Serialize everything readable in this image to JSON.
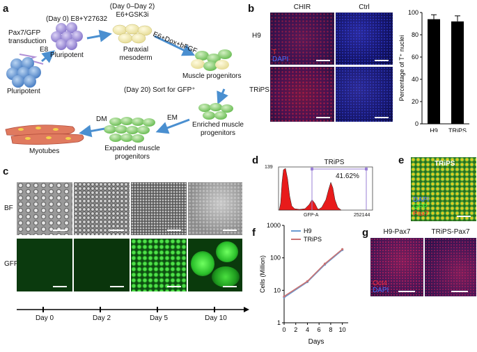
{
  "panel_labels": {
    "a": "a",
    "b": "b",
    "c": "c",
    "d": "d",
    "e": "e",
    "f": "f",
    "g": "g"
  },
  "panel_a": {
    "transduction": "Pax7/GFP\ntransduction",
    "e8": "E8",
    "day0": "(Day 0) E8+Y27632",
    "day0_2": "(Day 0–Day 2)\nE6+GSK3i",
    "dox": "E6+Dox+bFGF",
    "pluripotent_left": "Pluripotent",
    "pluripotent_mid": "Pluripotent",
    "paraxial": "Paraxial\nmesoderm",
    "muscle_prog": "Muscle progenitors",
    "sort": "(Day 20) Sort for GFP⁺",
    "enriched": "Enriched muscle\nprogenitors",
    "em": "EM",
    "dm": "DM",
    "expanded": "Expanded muscle\nprogenitors",
    "myotubes": "Myotubes"
  },
  "panel_b": {
    "col_chir": "CHIR",
    "col_ctrl": "Ctrl",
    "row_h9": "H9",
    "row_trips": "TRiPS",
    "stain_t": "T",
    "stain_dapi": "DAPI"
  },
  "chart_data": [
    {
      "type": "bar",
      "categories": [
        "H9",
        "TRiPS"
      ],
      "values": [
        94,
        92
      ],
      "errors": [
        4,
        5
      ],
      "ylabel": "Percentage of T⁺ nuclei",
      "ylim": [
        0,
        100
      ],
      "yticks": [
        "0",
        "20",
        "40",
        "60",
        "80",
        "100"
      ],
      "colors": {
        "bar": "#000000"
      }
    },
    {
      "type": "line",
      "x": [
        0,
        4,
        7,
        10
      ],
      "series": [
        {
          "name": "H9",
          "values": [
            6,
            18,
            62,
            175
          ],
          "color": "#6b9bd1"
        },
        {
          "name": "TRiPS",
          "values": [
            6.5,
            19,
            66,
            185
          ],
          "color": "#c97272"
        }
      ],
      "xlabel": "Days",
      "ylabel": "Cells (Million)",
      "xticks": [
        "0",
        "2",
        "4",
        "6",
        "8",
        "10"
      ],
      "yticks": [
        "1",
        "10",
        "100",
        "1000"
      ],
      "ylim": [
        1,
        1000
      ],
      "yscale": "log"
    }
  ],
  "panel_c": {
    "row_bf": "BF",
    "row_gfp": "GFP",
    "days": [
      "Day 0",
      "Day 2",
      "Day 5",
      "Day 10"
    ]
  },
  "panel_d": {
    "title": "TRiPS",
    "percent": "41.62%",
    "ymax": "139",
    "xlabel": "GFP-A",
    "xmax": "252144"
  },
  "panel_e": {
    "title": "TRiPS",
    "dapi": "DAPI",
    "gfp": "GFP",
    "pax7": "Pax7"
  },
  "panel_g": {
    "left": "H9-Pax7",
    "right": "TRiPS-Pax7",
    "oct4": "Oct4",
    "dapi": "DAPI"
  }
}
